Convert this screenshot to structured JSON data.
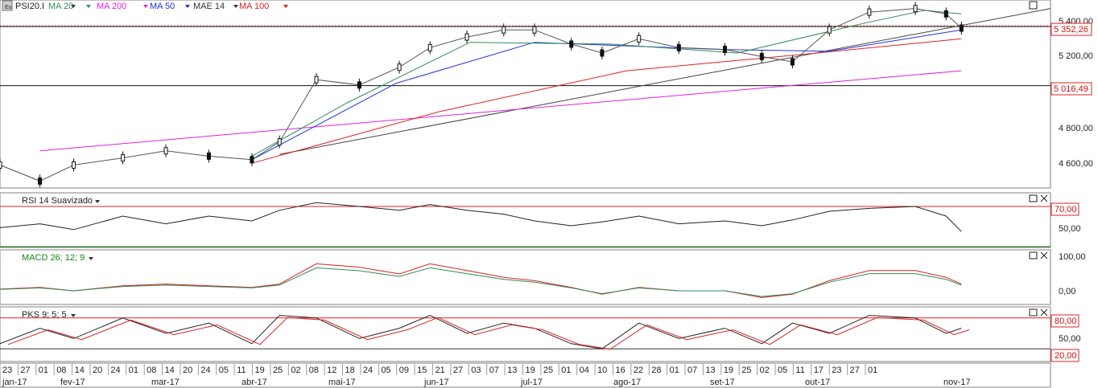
{
  "main": {
    "logo_text": "Eu",
    "symbol": "PSI20.I",
    "indicators": [
      {
        "label": "MA 20",
        "color": "#2e8b57"
      },
      {
        "label": "MA 200",
        "color": "#e020e0"
      },
      {
        "label": "MA 50",
        "color": "#2030e0"
      },
      {
        "label": "MAE 14",
        "color": "#333333"
      },
      {
        "label": "MA 100",
        "color": "#e02020"
      }
    ],
    "price_ticks": [
      "5 400,00",
      "5 200,00",
      "4 800,00",
      "4 600,00"
    ],
    "level_labels": [
      "5 352,26",
      "5 016,49"
    ]
  },
  "rsi": {
    "label": "RSI 14 Suavizado",
    "ticks": [
      "70,00",
      "50,00"
    ]
  },
  "macd": {
    "label": "MACD 26; 12; 9",
    "ticks": [
      "100,00",
      "0,00"
    ]
  },
  "pks": {
    "label": "PKS 9; 5; 5",
    "ticks": [
      "80,00",
      "50,00",
      "20,00"
    ]
  },
  "date_axis": {
    "days": [
      "23",
      "27",
      "01",
      "08",
      "14",
      "20",
      "24",
      "01",
      "08",
      "14",
      "20",
      "24",
      "05",
      "11",
      "19",
      "25",
      "02",
      "08",
      "12",
      "18",
      "24",
      "05",
      "09",
      "15",
      "21",
      "27",
      "03",
      "07",
      "13",
      "19",
      "25",
      "01",
      "04",
      "10",
      "16",
      "22",
      "28",
      "01",
      "07",
      "13",
      "19",
      "25",
      "02",
      "05",
      "11",
      "17",
      "23",
      "27",
      "01"
    ],
    "months": [
      "jan-17",
      "fev-17",
      "mar-17",
      "abr-17",
      "mai-17",
      "jun-17",
      "jul-17",
      "ago-17",
      "set-17",
      "out-17",
      "nov-17"
    ]
  },
  "chart_data": {
    "type": "candlestick",
    "title": "PSI20.I",
    "x_range": [
      "2016-12-23",
      "2017-11-30"
    ],
    "y_range": [
      4450,
      5480
    ],
    "horizontal_levels": [
      5352.26,
      5016.49
    ],
    "close_series": {
      "dates": [
        "2016-12-23",
        "2017-01-05",
        "2017-01-16",
        "2017-02-01",
        "2017-02-15",
        "2017-03-01",
        "2017-03-15",
        "2017-03-24",
        "2017-04-05",
        "2017-04-19",
        "2017-05-02",
        "2017-05-12",
        "2017-05-24",
        "2017-06-05",
        "2017-06-15",
        "2017-06-27",
        "2017-07-07",
        "2017-07-19",
        "2017-08-01",
        "2017-08-16",
        "2017-08-28",
        "2017-09-07",
        "2017-09-19",
        "2017-10-02",
        "2017-10-17",
        "2017-10-27",
        "2017-11-01"
      ],
      "values": [
        4570,
        4480,
        4570,
        4610,
        4650,
        4620,
        4600,
        4700,
        5050,
        5020,
        5120,
        5230,
        5290,
        5330,
        5330,
        5250,
        5200,
        5280,
        5230,
        5220,
        5180,
        5150,
        5330,
        5430,
        5450,
        5420,
        5340
      ]
    },
    "moving_averages": [
      {
        "name": "MA 200",
        "color": "#e020e0",
        "x": [
          "2017-01-05",
          "2017-11-01"
        ],
        "values": [
          4650,
          5100
        ]
      },
      {
        "name": "MA 100",
        "color": "#e02020",
        "x": [
          "2017-03-15",
          "2017-05-15",
          "2017-07-15",
          "2017-09-15",
          "2017-11-01"
        ],
        "values": [
          4580,
          4870,
          5100,
          5200,
          5280
        ]
      },
      {
        "name": "MA 50",
        "color": "#2030e0",
        "x": [
          "2017-03-15",
          "2017-05-01",
          "2017-06-15",
          "2017-08-15",
          "2017-09-19",
          "2017-11-01"
        ],
        "values": [
          4600,
          5030,
          5260,
          5220,
          5210,
          5330
        ]
      },
      {
        "name": "MA 20",
        "color": "#2e8b57",
        "x": [
          "2017-03-15",
          "2017-04-15",
          "2017-05-25",
          "2017-07-10",
          "2017-08-20",
          "2017-10-01",
          "2017-10-20",
          "2017-11-01"
        ],
        "values": [
          4620,
          4920,
          5260,
          5250,
          5200,
          5370,
          5440,
          5420
        ]
      }
    ],
    "trendline": {
      "x": [
        "2017-03-24",
        "2017-11-30"
      ],
      "values": [
        4630,
        5450
      ]
    },
    "indicators": [
      {
        "name": "RSI 14 Suavizado",
        "levels": [
          70,
          50
        ],
        "values": [
          48,
          52,
          46,
          60,
          52,
          60,
          55,
          66,
          74,
          70,
          66,
          72,
          66,
          62,
          55,
          50,
          54,
          60,
          52,
          55,
          50,
          56,
          65,
          68,
          70,
          60,
          44
        ]
      },
      {
        "name": "MACD 26; 12; 9",
        "levels": [
          100,
          0
        ],
        "values": [
          5,
          10,
          0,
          15,
          20,
          15,
          10,
          20,
          80,
          70,
          50,
          80,
          60,
          40,
          30,
          10,
          -10,
          10,
          0,
          0,
          -20,
          -10,
          30,
          60,
          60,
          40,
          20
        ]
      },
      {
        "name": "PKS 9; 5; 5",
        "levels": [
          80,
          50,
          20
        ],
        "values": [
          30,
          60,
          40,
          80,
          50,
          70,
          30,
          85,
          80,
          40,
          60,
          85,
          50,
          70,
          60,
          30,
          20,
          70,
          40,
          60,
          30,
          70,
          50,
          85,
          80,
          50,
          60
        ]
      }
    ]
  }
}
